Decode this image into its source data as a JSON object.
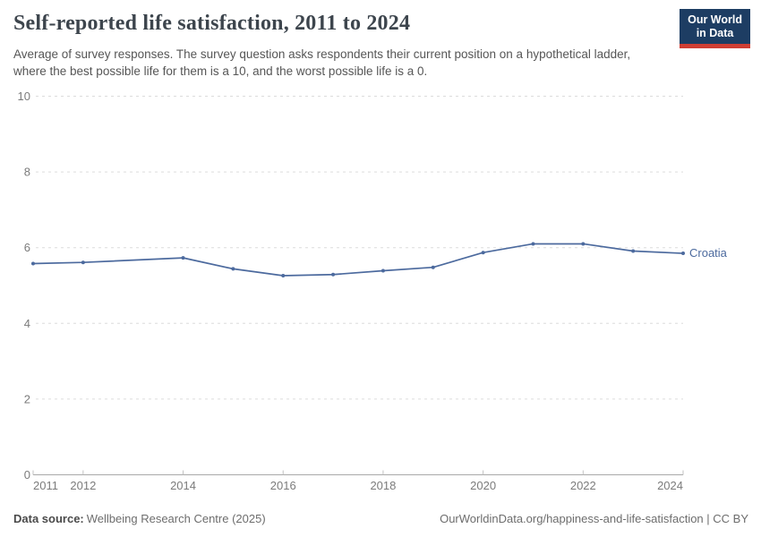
{
  "header": {
    "title": "Self-reported life satisfaction, 2011 to 2024",
    "subtitle": "Average of survey responses. The survey question asks respondents their current position on a hypothetical ladder, where the best possible life for them is a 10, and the worst possible life is a 0.",
    "logo": {
      "line1": "Our World",
      "line2": "in Data",
      "bg_color": "#1d3d63",
      "accent_color": "#cf3e33"
    }
  },
  "chart_data": {
    "type": "line",
    "title": "Self-reported life satisfaction, 2011 to 2024",
    "x": [
      2011,
      2012,
      2014,
      2015,
      2016,
      2017,
      2018,
      2019,
      2020,
      2021,
      2022,
      2023,
      2024
    ],
    "series": [
      {
        "name": "Croatia",
        "color": "#4c6a9e",
        "values": [
          5.58,
          5.61,
          5.73,
          5.44,
          5.26,
          5.29,
          5.39,
          5.48,
          5.87,
          6.1,
          6.1,
          5.91,
          5.85
        ]
      }
    ],
    "xlabel": "",
    "ylabel": "",
    "xlim": [
      2011,
      2024
    ],
    "ylim": [
      0,
      10
    ],
    "x_tick_labels": [
      2011,
      2012,
      2014,
      2016,
      2018,
      2020,
      2022,
      2024
    ],
    "y_tick_labels": [
      0,
      2,
      4,
      6,
      8,
      10
    ],
    "grid": "horizontal-dashed",
    "legend": "series label at end of line",
    "colors": {
      "grid": "#dcdcdc",
      "axis": "#a9a9a9",
      "tick_mark": "#c2c2c2",
      "tick_text": "#7b7b7b"
    }
  },
  "footer": {
    "datasource_label": "Data source:",
    "datasource_value": "Wellbeing Research Centre (2025)",
    "credit": "OurWorldinData.org/happiness-and-life-satisfaction | CC BY"
  }
}
